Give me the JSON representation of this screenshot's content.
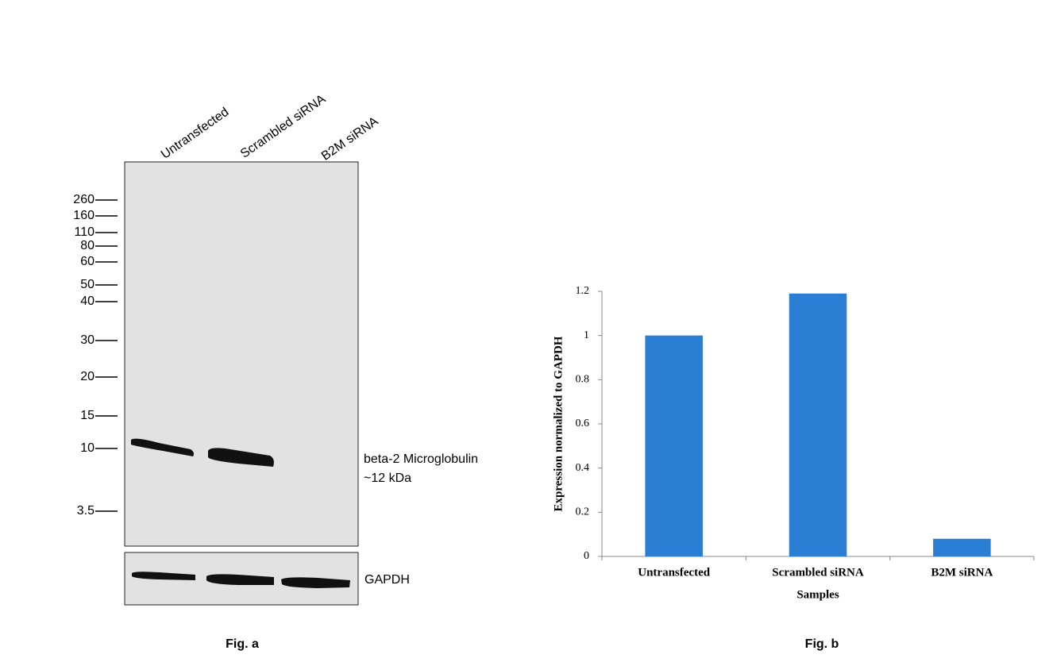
{
  "blot": {
    "lanes": [
      "Untransfected",
      "Scrambled siRNA",
      "B2M siRNA"
    ],
    "markers": [
      "260",
      "160",
      "110",
      "80",
      "60",
      "50",
      "40",
      "30",
      "20",
      "15",
      "10",
      "3.5"
    ],
    "band_label": [
      "beta-2 Microglobulin",
      "~12 kDa"
    ],
    "loading_control": "GAPDH",
    "caption": "Fig. a"
  },
  "chart_data": {
    "type": "bar",
    "caption": "Fig. b",
    "x_label": "Samples",
    "y_label": "Expression normalized to GAPDH",
    "categories": [
      "Untransfected",
      "Scrambled siRNA",
      "B2M siRNA"
    ],
    "values": [
      1.0,
      1.19,
      0.08
    ],
    "color": "#2a7fd4",
    "ylim": [
      0,
      1.2
    ],
    "yticks": [
      0,
      0.2,
      0.4,
      0.6,
      0.8,
      1,
      1.2
    ]
  }
}
